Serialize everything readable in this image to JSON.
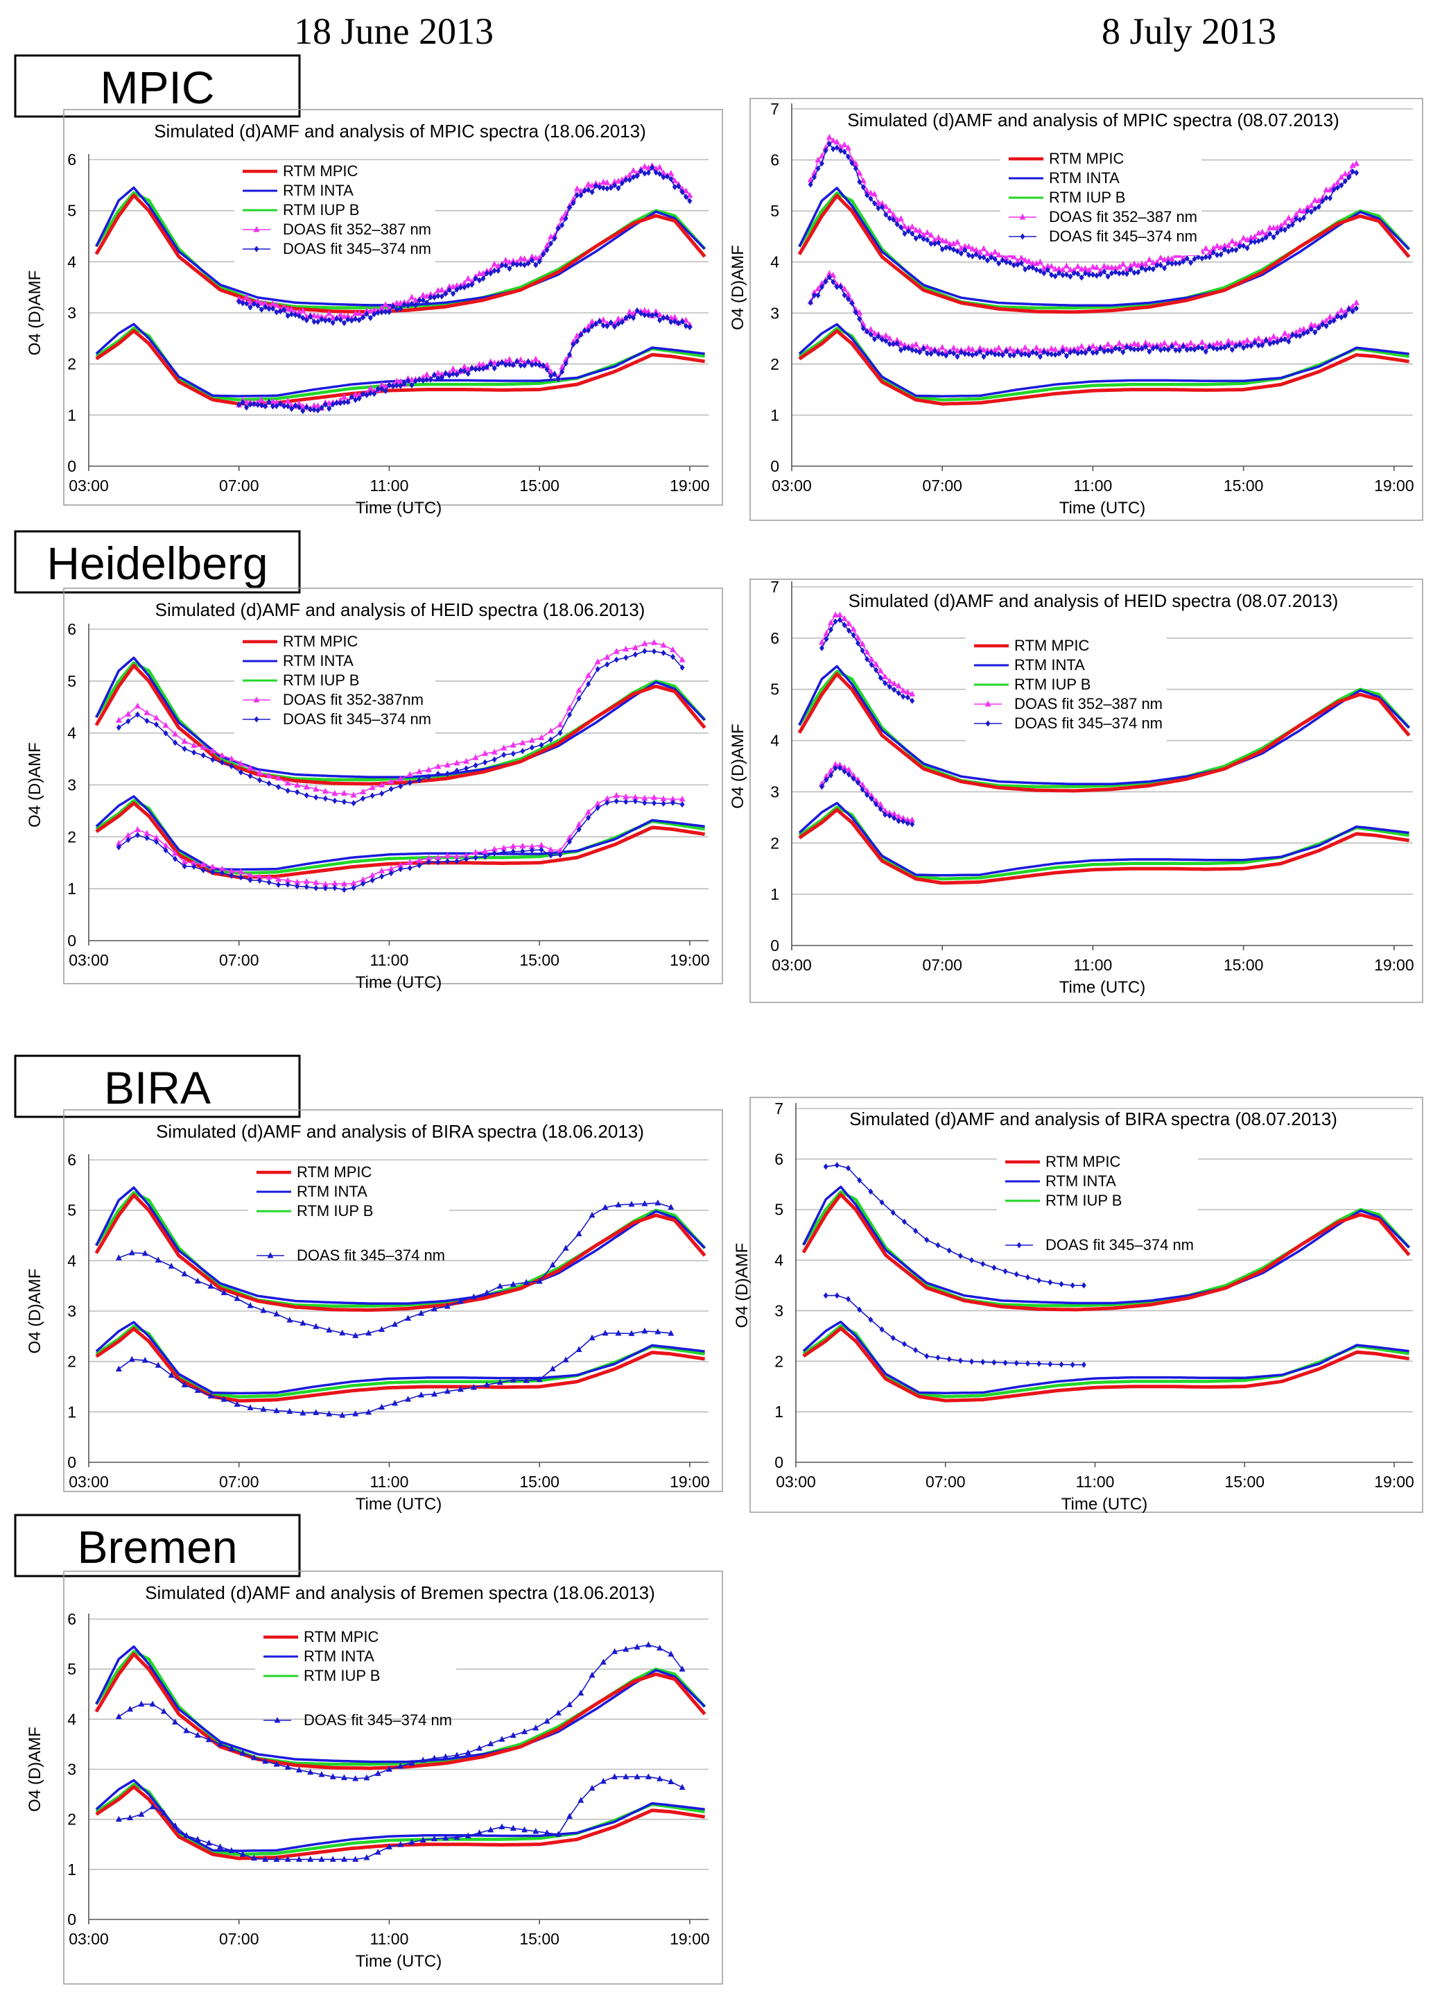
{
  "column_headers": [
    "18 June 2013",
    "8 July 2013"
  ],
  "site_labels": [
    "MPIC",
    "Heidelberg",
    "BIRA",
    "Bremen"
  ],
  "colors": {
    "rtm_mpic": "#e8141a",
    "rtm_inta": "#1a1adc",
    "rtm_iupb": "#22d628",
    "doas_352_387": "#f032f0",
    "doas_345_374": "#1a1acc"
  },
  "chart_data": [
    {
      "id": "mpic-0618",
      "type": "line",
      "site": "MPIC",
      "date": "18.06.2013",
      "title": "Simulated (d)AMF and analysis of MPIC spectra (18.06.2013)",
      "xlabel": "Time (UTC)",
      "ylabel": "O4 (D)AMF",
      "x_ticks": [
        "03:00",
        "07:00",
        "11:00",
        "15:00",
        "19:00"
      ],
      "xlim": [
        3,
        19.5
      ],
      "y_ticks": [
        "0",
        "1",
        "2",
        "3",
        "4",
        "5",
        "6"
      ],
      "ylim": [
        0,
        6
      ],
      "legend": [
        "RTM MPIC",
        "RTM INTA",
        "RTM IUP B",
        "DOAS fit 352–387 nm",
        "DOAS fit 345–374 nm"
      ],
      "doas_series": [
        "d352",
        "d345"
      ],
      "doas_marker": "diamond",
      "doas_x": [
        7,
        19
      ],
      "doas_step": 0.1,
      "doas_upper": [
        [
          7,
          3.2
        ],
        [
          8,
          3.05
        ],
        [
          9,
          2.85
        ],
        [
          10,
          2.85
        ],
        [
          11,
          3.05
        ],
        [
          12,
          3.25
        ],
        [
          13,
          3.5
        ],
        [
          14,
          3.9
        ],
        [
          15,
          4.0
        ],
        [
          15.5,
          4.6
        ],
        [
          16,
          5.3
        ],
        [
          16.5,
          5.45
        ],
        [
          17,
          5.45
        ],
        [
          17.6,
          5.7
        ],
        [
          18,
          5.8
        ],
        [
          18.5,
          5.6
        ],
        [
          19,
          5.2
        ]
      ],
      "doas_lower": [
        [
          7,
          1.2
        ],
        [
          8,
          1.2
        ],
        [
          9,
          1.1
        ],
        [
          10,
          1.3
        ],
        [
          11,
          1.55
        ],
        [
          12,
          1.7
        ],
        [
          13,
          1.85
        ],
        [
          14,
          2.0
        ],
        [
          15,
          2.0
        ],
        [
          15.5,
          1.7
        ],
        [
          16,
          2.5
        ],
        [
          16.5,
          2.8
        ],
        [
          17,
          2.75
        ],
        [
          17.6,
          3.0
        ],
        [
          18,
          2.95
        ],
        [
          18.5,
          2.85
        ],
        [
          19,
          2.75
        ]
      ],
      "doas_offset": 0.08,
      "noise": 0.06
    },
    {
      "id": "mpic-0708",
      "type": "line",
      "site": "MPIC",
      "date": "08.07.2013",
      "title": "Simulated (d)AMF and analysis of MPIC spectra (08.07.2013)",
      "xlabel": "Time (UTC)",
      "ylabel": "O4 (D)AMF",
      "x_ticks": [
        "03:00",
        "07:00",
        "11:00",
        "15:00",
        "19:00"
      ],
      "xlim": [
        3,
        19.5
      ],
      "y_ticks": [
        "0",
        "1",
        "2",
        "3",
        "4",
        "5",
        "6",
        "7"
      ],
      "ylim": [
        0,
        7
      ],
      "legend": [
        "RTM MPIC",
        "RTM INTA",
        "RTM IUP B",
        "DOAS fit 352–387 nm",
        "DOAS fit 345–374 nm"
      ],
      "doas_series": [
        "d352",
        "d345"
      ],
      "doas_marker": "diamond",
      "doas_x": [
        3.5,
        18
      ],
      "doas_step": 0.1,
      "doas_upper": [
        [
          3.5,
          5.5
        ],
        [
          4,
          6.3
        ],
        [
          4.5,
          6.1
        ],
        [
          5,
          5.3
        ],
        [
          6,
          4.6
        ],
        [
          7,
          4.3
        ],
        [
          8,
          4.1
        ],
        [
          9,
          3.95
        ],
        [
          10,
          3.75
        ],
        [
          11,
          3.75
        ],
        [
          12,
          3.8
        ],
        [
          13,
          3.95
        ],
        [
          14,
          4.1
        ],
        [
          15,
          4.3
        ],
        [
          16,
          4.6
        ],
        [
          17,
          5.1
        ],
        [
          18,
          5.8
        ]
      ],
      "doas_lower": [
        [
          3.5,
          3.2
        ],
        [
          4,
          3.7
        ],
        [
          4.5,
          3.3
        ],
        [
          5,
          2.6
        ],
        [
          6,
          2.3
        ],
        [
          7,
          2.2
        ],
        [
          8,
          2.2
        ],
        [
          9,
          2.2
        ],
        [
          10,
          2.2
        ],
        [
          11,
          2.25
        ],
        [
          12,
          2.3
        ],
        [
          13,
          2.3
        ],
        [
          14,
          2.3
        ],
        [
          15,
          2.35
        ],
        [
          16,
          2.45
        ],
        [
          17,
          2.7
        ],
        [
          18,
          3.1
        ]
      ],
      "doas_offset": 0.12,
      "noise": 0.06
    },
    {
      "id": "heid-0618",
      "type": "line",
      "site": "Heidelberg",
      "date": "18.06.2013",
      "title": "Simulated (d)AMF and analysis of HEID spectra (18.06.2013)",
      "xlabel": "Time (UTC)",
      "ylabel": "O4 (D)AMF",
      "x_ticks": [
        "03:00",
        "07:00",
        "11:00",
        "15:00",
        "19:00"
      ],
      "xlim": [
        3,
        19.5
      ],
      "y_ticks": [
        "0",
        "1",
        "2",
        "3",
        "4",
        "5",
        "6"
      ],
      "ylim": [
        0,
        6
      ],
      "legend": [
        "RTM MPIC",
        "RTM INTA",
        "RTM IUP B",
        "DOAS fit 352-387nm",
        "DOAS fit 345–374 nm"
      ],
      "doas_series": [
        "d352",
        "d345"
      ],
      "doas_marker": "diamond",
      "doas_x": [
        3.8,
        19
      ],
      "doas_step": 0.25,
      "doas_upper": [
        [
          3.8,
          4.1
        ],
        [
          4.3,
          4.35
        ],
        [
          4.8,
          4.15
        ],
        [
          5.5,
          3.7
        ],
        [
          6.5,
          3.45
        ],
        [
          7.5,
          3.1
        ],
        [
          8.5,
          2.85
        ],
        [
          9.5,
          2.7
        ],
        [
          10,
          2.65
        ],
        [
          11,
          2.9
        ],
        [
          12,
          3.15
        ],
        [
          13,
          3.3
        ],
        [
          14,
          3.55
        ],
        [
          15,
          3.75
        ],
        [
          15.5,
          3.95
        ],
        [
          16,
          4.6
        ],
        [
          16.5,
          5.2
        ],
        [
          17,
          5.4
        ],
        [
          18,
          5.6
        ],
        [
          18.5,
          5.5
        ],
        [
          19,
          5.1
        ]
      ],
      "doas_lower": [
        [
          3.8,
          1.8
        ],
        [
          4.3,
          2.05
        ],
        [
          4.8,
          1.9
        ],
        [
          5.5,
          1.45
        ],
        [
          6.5,
          1.3
        ],
        [
          7.5,
          1.15
        ],
        [
          8.5,
          1.05
        ],
        [
          9.5,
          1.0
        ],
        [
          10,
          1.0
        ],
        [
          11,
          1.3
        ],
        [
          12,
          1.5
        ],
        [
          13,
          1.55
        ],
        [
          14,
          1.7
        ],
        [
          15,
          1.75
        ],
        [
          15.5,
          1.6
        ],
        [
          16,
          2.1
        ],
        [
          16.5,
          2.55
        ],
        [
          17,
          2.7
        ],
        [
          18,
          2.65
        ],
        [
          18.5,
          2.65
        ],
        [
          19,
          2.6
        ]
      ],
      "doas_offset": 0.15,
      "noise": 0.02
    },
    {
      "id": "heid-0708",
      "type": "line",
      "site": "Heidelberg",
      "date": "08.07.2013",
      "title": "Simulated (d)AMF and analysis of HEID spectra (08.07.2013)",
      "xlabel": "Time (UTC)",
      "ylabel": "O4 (D)AMF",
      "x_ticks": [
        "03:00",
        "07:00",
        "11:00",
        "15:00",
        "19:00"
      ],
      "xlim": [
        3,
        19.5
      ],
      "y_ticks": [
        "0",
        "1",
        "2",
        "3",
        "4",
        "5",
        "6",
        "7"
      ],
      "ylim": [
        0,
        7
      ],
      "legend": [
        "RTM MPIC",
        "RTM INTA",
        "RTM IUP B",
        "DOAS fit 352–387 nm",
        "DOAS fit 345–374 nm"
      ],
      "doas_series": [
        "d352",
        "d345"
      ],
      "doas_marker": "diamond",
      "doas_x": [
        3.8,
        6.3
      ],
      "doas_step": 0.12,
      "doas_upper": [
        [
          3.8,
          5.8
        ],
        [
          4.2,
          6.4
        ],
        [
          4.6,
          6.1
        ],
        [
          5.0,
          5.6
        ],
        [
          5.5,
          5.1
        ],
        [
          6.0,
          4.85
        ],
        [
          6.3,
          4.75
        ]
      ],
      "doas_lower": [
        [
          3.8,
          3.1
        ],
        [
          4.2,
          3.5
        ],
        [
          4.6,
          3.3
        ],
        [
          5.0,
          2.95
        ],
        [
          5.5,
          2.55
        ],
        [
          6.0,
          2.4
        ],
        [
          6.3,
          2.35
        ]
      ],
      "doas_offset": 0.12,
      "noise": 0.02
    },
    {
      "id": "bira-0618",
      "type": "line",
      "site": "BIRA",
      "date": "18.06.2013",
      "title": "Simulated (d)AMF and analysis of BIRA spectra (18.06.2013)",
      "xlabel": "Time (UTC)",
      "ylabel": "O4 (D)AMF",
      "x_ticks": [
        "03:00",
        "07:00",
        "11:00",
        "15:00",
        "19:00"
      ],
      "xlim": [
        3,
        19.5
      ],
      "y_ticks": [
        "0",
        "1",
        "2",
        "3",
        "4",
        "5",
        "6"
      ],
      "ylim": [
        0,
        6
      ],
      "legend": [
        "RTM MPIC",
        "RTM INTA",
        "RTM IUP B",
        "DOAS fit 345–374 nm"
      ],
      "doas_series": [
        "d345"
      ],
      "doas_marker": "triangle",
      "doas_x": [
        3.8,
        18.6
      ],
      "doas_step": 0.35,
      "doas_upper": [
        [
          3.8,
          4.05
        ],
        [
          4.3,
          4.2
        ],
        [
          4.8,
          4.05
        ],
        [
          5.5,
          3.75
        ],
        [
          6.5,
          3.4
        ],
        [
          7.5,
          3.05
        ],
        [
          8.5,
          2.8
        ],
        [
          9.5,
          2.6
        ],
        [
          10.3,
          2.5
        ],
        [
          11,
          2.7
        ],
        [
          12,
          3.0
        ],
        [
          13,
          3.2
        ],
        [
          14,
          3.5
        ],
        [
          15,
          3.6
        ],
        [
          16,
          4.5
        ],
        [
          16.5,
          5.0
        ],
        [
          17,
          5.1
        ],
        [
          18,
          5.15
        ],
        [
          18.6,
          5.05
        ]
      ],
      "doas_lower": [
        [
          3.8,
          1.85
        ],
        [
          4.3,
          2.1
        ],
        [
          4.8,
          1.95
        ],
        [
          5.5,
          1.55
        ],
        [
          6.5,
          1.25
        ],
        [
          7.5,
          1.05
        ],
        [
          8.5,
          1.0
        ],
        [
          9.5,
          0.95
        ],
        [
          10.3,
          0.95
        ],
        [
          11,
          1.15
        ],
        [
          12,
          1.35
        ],
        [
          13,
          1.45
        ],
        [
          14,
          1.6
        ],
        [
          15,
          1.65
        ],
        [
          16,
          2.2
        ],
        [
          16.5,
          2.55
        ],
        [
          17,
          2.55
        ],
        [
          18,
          2.6
        ],
        [
          18.6,
          2.55
        ]
      ],
      "doas_offset": 0,
      "noise": 0.02
    },
    {
      "id": "bira-0708",
      "type": "line",
      "site": "BIRA",
      "date": "08.07.2013",
      "title": "Simulated (d)AMF  and analysis of BIRA spectra (08.07.2013)",
      "xlabel": "Time (UTC)",
      "ylabel": "O4 (D)AMF",
      "x_ticks": [
        "03:00",
        "07:00",
        "11:00",
        "15:00",
        "19:00"
      ],
      "xlim": [
        3,
        19.5
      ],
      "y_ticks": [
        "0",
        "1",
        "2",
        "3",
        "4",
        "5",
        "6",
        "7"
      ],
      "ylim": [
        0,
        7
      ],
      "legend": [
        "RTM MPIC",
        "RTM INTA",
        "RTM IUP B",
        "DOAS fit 345–374 nm"
      ],
      "doas_series": [
        "d345"
      ],
      "doas_marker": "diamond",
      "doas_x": [
        3.8,
        10.8
      ],
      "doas_step": 0.3,
      "doas_upper": [
        [
          3.8,
          5.85
        ],
        [
          4.3,
          5.9
        ],
        [
          4.8,
          5.5
        ],
        [
          5.5,
          5.0
        ],
        [
          6.5,
          4.4
        ],
        [
          7.5,
          4.05
        ],
        [
          8.5,
          3.8
        ],
        [
          9.5,
          3.6
        ],
        [
          10.3,
          3.5
        ],
        [
          10.8,
          3.5
        ]
      ],
      "doas_lower": [
        [
          3.8,
          3.3
        ],
        [
          4.3,
          3.3
        ],
        [
          4.8,
          2.95
        ],
        [
          5.5,
          2.5
        ],
        [
          6.5,
          2.1
        ],
        [
          7.5,
          2.0
        ],
        [
          8.5,
          1.97
        ],
        [
          9.5,
          1.95
        ],
        [
          10.3,
          1.93
        ],
        [
          10.8,
          1.93
        ]
      ],
      "doas_offset": 0,
      "noise": 0.0
    },
    {
      "id": "bremen-0618",
      "type": "line",
      "site": "Bremen",
      "date": "18.06.2013",
      "title": "Simulated (d)AMF and analysis of Bremen spectra (18.06.2013)",
      "xlabel": "Time (UTC)",
      "ylabel": "O4 (D)AMF",
      "x_ticks": [
        "03:00",
        "07:00",
        "11:00",
        "15:00",
        "19:00"
      ],
      "xlim": [
        3,
        19.5
      ],
      "y_ticks": [
        "0",
        "1",
        "2",
        "3",
        "4",
        "5",
        "6"
      ],
      "ylim": [
        0,
        6
      ],
      "legend": [
        "RTM MPIC",
        "RTM INTA",
        "RTM IUP B",
        "DOAS fit 345–374 nm"
      ],
      "doas_series": [
        "d345"
      ],
      "doas_marker": "triangle",
      "doas_x": [
        3.8,
        18.9
      ],
      "doas_step": 0.3,
      "doas_upper": [
        [
          3.8,
          4.05
        ],
        [
          4.3,
          4.3
        ],
        [
          4.8,
          4.3
        ],
        [
          5.5,
          3.8
        ],
        [
          6.5,
          3.5
        ],
        [
          7.5,
          3.2
        ],
        [
          8.5,
          3.0
        ],
        [
          9.5,
          2.85
        ],
        [
          10.3,
          2.8
        ],
        [
          11,
          3.0
        ],
        [
          12,
          3.2
        ],
        [
          13,
          3.3
        ],
        [
          14,
          3.6
        ],
        [
          15,
          3.85
        ],
        [
          16,
          4.4
        ],
        [
          16.5,
          5.0
        ],
        [
          17,
          5.35
        ],
        [
          18,
          5.5
        ],
        [
          18.5,
          5.3
        ],
        [
          18.9,
          4.9
        ]
      ],
      "doas_lower": [
        [
          3.8,
          2.0
        ],
        [
          4.3,
          2.05
        ],
        [
          4.8,
          2.3
        ],
        [
          5.5,
          1.7
        ],
        [
          6.5,
          1.45
        ],
        [
          7.5,
          1.2
        ],
        [
          8.5,
          1.2
        ],
        [
          9.5,
          1.2
        ],
        [
          10.3,
          1.2
        ],
        [
          11,
          1.45
        ],
        [
          12,
          1.6
        ],
        [
          13,
          1.65
        ],
        [
          14,
          1.85
        ],
        [
          15,
          1.75
        ],
        [
          15.5,
          1.7
        ],
        [
          16,
          2.3
        ],
        [
          16.5,
          2.7
        ],
        [
          17,
          2.85
        ],
        [
          18,
          2.85
        ],
        [
          18.5,
          2.75
        ],
        [
          18.9,
          2.6
        ]
      ],
      "doas_offset": 0,
      "noise": 0.0
    }
  ]
}
